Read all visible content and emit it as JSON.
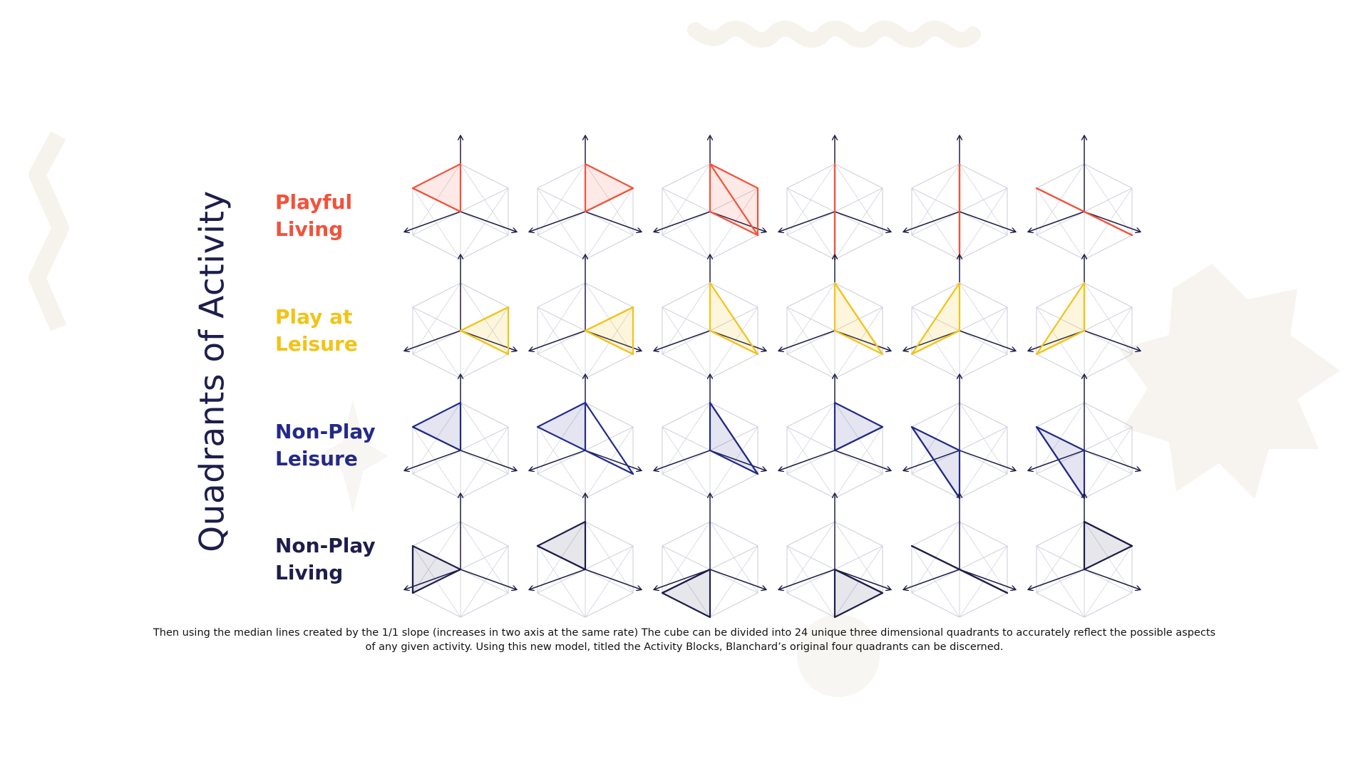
{
  "title": "Quadrants of Activity",
  "colors": {
    "red": "#f2523b",
    "yellow": "#f2c318",
    "navy": "#232a88",
    "dark": "#1d1e4a",
    "grid": "#cfd0dc",
    "deco": "#f6f3ec"
  },
  "rows": [
    {
      "line1": "Playful",
      "line2": "Living",
      "color": "#f2523b",
      "fill": "rgba(242,82,59,0.13)"
    },
    {
      "line1": "Play at",
      "line2": "Leisure",
      "color": "#f2c318",
      "fill": "rgba(242,195,24,0.15)"
    },
    {
      "line1": "Non-Play",
      "line2": "Leisure",
      "color": "#232a88",
      "fill": "rgba(35,42,136,0.12)"
    },
    {
      "line1": "Non-Play",
      "line2": "Living",
      "color": "#1d1e4a",
      "fill": "rgba(29,30,74,0.11)"
    }
  ],
  "caption": {
    "line1": "Then using the median lines created by the 1/1 slope (increases in two axis at the same rate) The cube can be divided into 24 unique three dimensional quadrants to accurately reflect the possible aspects",
    "line2": "of any given activity. Using this new model, titled the Activity Blocks, Blanchard’s original four quadrants can be discerned."
  }
}
